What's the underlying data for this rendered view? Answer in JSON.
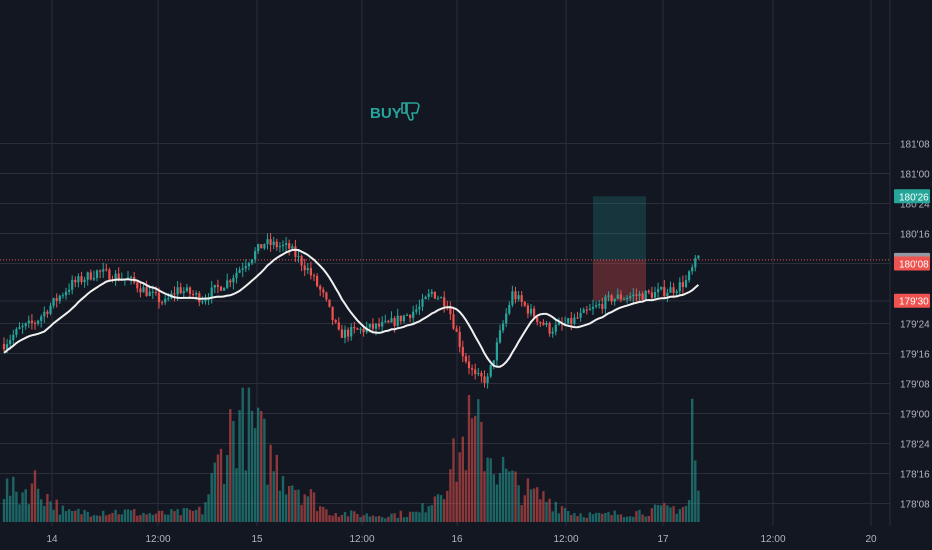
{
  "chart_data": {
    "type": "candlestick",
    "price_format": "32nds",
    "ylim": [
      178.06,
      181.28
    ],
    "x_ticks": [
      "14",
      "12:00",
      "15",
      "12:00",
      "16",
      "12:00",
      "17",
      "12:00",
      "20"
    ],
    "y_ticks": [
      "178'08",
      "178'16",
      "178'24",
      "179'00",
      "179'08",
      "179'16",
      "179'24",
      "179'30",
      "180'08",
      "180'16",
      "180'24",
      "181'00",
      "181'08"
    ],
    "price_markers": [
      {
        "label": "180'26",
        "value": 180.81,
        "color": "#26a69a"
      },
      {
        "label": "180'09",
        "value": 180.28,
        "color": "#9598a1"
      },
      {
        "label": "180'08",
        "value": 180.25,
        "color": "#ef5350"
      },
      {
        "label": "179'30",
        "value": 179.94,
        "color": "#ef5350"
      }
    ],
    "current_price": 180.28,
    "position": {
      "entry": 180.28,
      "target": 180.81,
      "stop": 179.94
    },
    "signal": {
      "text": "BUY",
      "icon": "thumbs-down-icon"
    },
    "moving_average": "white line",
    "colors": {
      "up": "#26a69a",
      "down": "#ef5350",
      "ma": "#f0f0f0",
      "background": "#131722",
      "grid": "#2a2e39"
    },
    "anchors": [
      [
        0,
        179.58
      ],
      [
        5,
        179.7
      ],
      [
        10,
        179.76
      ],
      [
        18,
        179.98
      ],
      [
        22,
        180.08
      ],
      [
        30,
        180.18
      ],
      [
        40,
        180.12
      ],
      [
        48,
        179.98
      ],
      [
        52,
        179.92
      ],
      [
        56,
        180.04
      ],
      [
        64,
        179.96
      ],
      [
        72,
        180.1
      ],
      [
        84,
        180.42
      ],
      [
        92,
        180.38
      ],
      [
        98,
        180.2
      ],
      [
        103,
        179.98
      ],
      [
        108,
        179.66
      ],
      [
        116,
        179.7
      ],
      [
        124,
        179.74
      ],
      [
        134,
        179.88
      ],
      [
        138,
        180.01
      ],
      [
        143,
        179.92
      ],
      [
        148,
        179.5
      ],
      [
        152,
        179.3
      ],
      [
        156,
        179.28
      ],
      [
        160,
        179.66
      ],
      [
        164,
        180.0
      ],
      [
        170,
        179.84
      ],
      [
        176,
        179.7
      ],
      [
        182,
        179.75
      ],
      [
        188,
        179.84
      ],
      [
        196,
        179.96
      ],
      [
        210,
        180.0
      ],
      [
        216,
        180.04
      ],
      [
        220,
        180.1
      ],
      [
        224,
        180.3
      ]
    ],
    "volume_anchors": [
      [
        0,
        0.3
      ],
      [
        5,
        0.25
      ],
      [
        10,
        0.35
      ],
      [
        14,
        0.22
      ],
      [
        20,
        0.08
      ],
      [
        30,
        0.1
      ],
      [
        40,
        0.09
      ],
      [
        48,
        0.07
      ],
      [
        56,
        0.08
      ],
      [
        64,
        0.1
      ],
      [
        72,
        0.75
      ],
      [
        76,
        0.95
      ],
      [
        80,
        0.85
      ],
      [
        86,
        0.55
      ],
      [
        92,
        0.4
      ],
      [
        98,
        0.25
      ],
      [
        104,
        0.1
      ],
      [
        112,
        0.07
      ],
      [
        120,
        0.06
      ],
      [
        128,
        0.07
      ],
      [
        134,
        0.08
      ],
      [
        140,
        0.3
      ],
      [
        146,
        0.55
      ],
      [
        150,
        0.8
      ],
      [
        154,
        0.75
      ],
      [
        158,
        0.55
      ],
      [
        164,
        0.35
      ],
      [
        170,
        0.25
      ],
      [
        176,
        0.2
      ],
      [
        184,
        0.08
      ],
      [
        192,
        0.06
      ],
      [
        200,
        0.08
      ],
      [
        208,
        0.1
      ],
      [
        214,
        0.12
      ],
      [
        220,
        0.14
      ],
      [
        224,
        0.35
      ]
    ],
    "volume_spikes": [
      [
        222,
        1.1
      ],
      [
        223,
        0.55
      ],
      [
        224,
        0.28
      ]
    ]
  }
}
